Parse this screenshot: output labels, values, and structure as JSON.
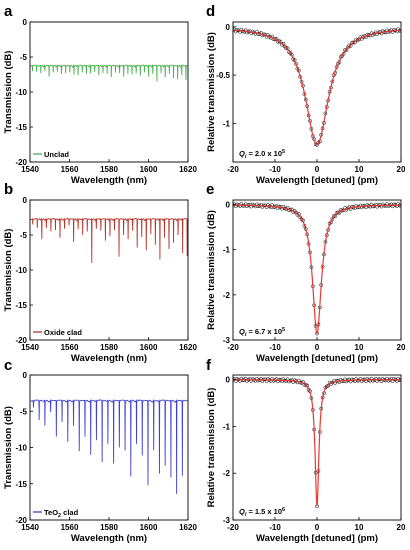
{
  "chart_data": [
    {
      "panel": "a",
      "type": "line",
      "xlabel": "Wavelength (nm)",
      "ylabel": "Transmission (dB)",
      "xlim": [
        1540,
        1620
      ],
      "ylim": [
        -20,
        0
      ],
      "xticks": [
        1540,
        1560,
        1580,
        1600,
        1620
      ],
      "yticks": [
        -20,
        -15,
        -10,
        -5,
        0
      ],
      "series": [
        {
          "name": "Unclad",
          "color": "#4caf50",
          "baseline": -6.3,
          "spacing_nm": 2.1,
          "dips": [
            -7.0,
            -7.1,
            -7.3,
            -7.0,
            -7.8,
            -7.2,
            -7.1,
            -7.4,
            -7.3,
            -7.2,
            -7.5,
            -7.6,
            -7.2,
            -7.4,
            -7.3,
            -7.1,
            -7.6,
            -7.3,
            -7.4,
            -7.9,
            -7.2,
            -7.3,
            -7.8,
            -7.4,
            -7.5,
            -7.3,
            -7.7,
            -7.2,
            -7.8,
            -7.4,
            -8.5,
            -7.3,
            -7.9,
            -7.4,
            -8.0,
            -8.2,
            -7.6,
            -8.3
          ]
        }
      ]
    },
    {
      "panel": "b",
      "type": "line",
      "xlabel": "Wavelength (nm)",
      "ylabel": "Transmission (dB)",
      "xlim": [
        1540,
        1620
      ],
      "ylim": [
        -20,
        0
      ],
      "xticks": [
        1540,
        1560,
        1580,
        1600,
        1620
      ],
      "yticks": [
        -20,
        -15,
        -10,
        -5,
        0
      ],
      "series": [
        {
          "name": "Oxide clad",
          "color": "#b5352a",
          "baseline": -2.8,
          "spacing_nm": 2.3,
          "dips": [
            -3.5,
            -4.0,
            -5.6,
            -4.0,
            -4.5,
            -4.3,
            -5.4,
            -4.1,
            -3.6,
            -6.0,
            -4.2,
            -5.0,
            -4.5,
            -9.0,
            -4.1,
            -4.4,
            -5.8,
            -5.2,
            -4.3,
            -8.1,
            -5.0,
            -5.6,
            -4.4,
            -6.8,
            -5.3,
            -7.2,
            -4.9,
            -6.4,
            -8.5,
            -5.4,
            -7.0,
            -6.1,
            -5.0,
            -7.6,
            -8.0
          ]
        }
      ]
    },
    {
      "panel": "c",
      "type": "line",
      "xlabel": "Wavelength (nm)",
      "ylabel": "Transmission (dB)",
      "xlim": [
        1540,
        1620
      ],
      "ylim": [
        -20,
        0
      ],
      "xticks": [
        1540,
        1560,
        1580,
        1600,
        1620
      ],
      "yticks": [
        -20,
        -15,
        -10,
        -5,
        0
      ],
      "series": [
        {
          "name": "TeO₂ clad",
          "color": "#3f3fd4",
          "baseline": -3.6,
          "spacing_nm": 2.9,
          "dips": [
            -4.5,
            -6.2,
            -7.0,
            -5.1,
            -8.5,
            -6.5,
            -9.2,
            -7.0,
            -10.5,
            -8.5,
            -11.0,
            -9.0,
            -12.0,
            -9.5,
            -12.2,
            -10.0,
            -10.4,
            -14.0,
            -9.5,
            -11.1,
            -15.2,
            -10.4,
            -13.6,
            -12.5,
            -14.1,
            -16.4,
            -13.9
          ]
        }
      ]
    },
    {
      "panel": "d",
      "type": "scatter",
      "xlabel": "Wavelength [detuned] (pm)",
      "ylabel": "Relative transmission (dB)",
      "xlim": [
        -20,
        20
      ],
      "ylim": [
        -1.4,
        0.05
      ],
      "xticks": [
        -20,
        -10,
        0,
        10,
        20
      ],
      "yticks": [
        -1,
        -0.5,
        0
      ],
      "annotation": "Qi = 2.0 x 10^5",
      "q_base": "2.0 x 10",
      "q_exp": "5",
      "resonance": {
        "depth_db": -1.22,
        "hwhm_pm": 3.4,
        "marker_color": "#000000",
        "fit_color": "#e53935"
      }
    },
    {
      "panel": "e",
      "type": "scatter",
      "xlabel": "Wavelength [detuned] (pm)",
      "ylabel": "Relative transmission (dB)",
      "xlim": [
        -20,
        20
      ],
      "ylim": [
        -3,
        0.1
      ],
      "xticks": [
        -20,
        -10,
        0,
        10,
        20
      ],
      "yticks": [
        -3,
        -2,
        -1,
        0
      ],
      "annotation": "Qi = 6.7 x 10^5",
      "q_base": "6.7 x 10",
      "q_exp": "5",
      "resonance": {
        "depth_db": -2.85,
        "hwhm_pm": 1.3,
        "marker_color": "#000000",
        "fit_color": "#e53935"
      }
    },
    {
      "panel": "f",
      "type": "scatter",
      "xlabel": "Wavelength [detuned] (pm)",
      "ylabel": "Relative transmission (dB)",
      "xlim": [
        -20,
        20
      ],
      "ylim": [
        -3,
        0.1
      ],
      "xticks": [
        -20,
        -10,
        0,
        10,
        20
      ],
      "yticks": [
        -3,
        -2,
        -1,
        0
      ],
      "annotation": "Qi = 1.5 x 10^6",
      "q_base": "1.5 x 10",
      "q_exp": "6",
      "resonance": {
        "depth_db": -2.7,
        "hwhm_pm": 0.55,
        "marker_color": "#000000",
        "fit_color": "#e53935"
      }
    }
  ]
}
